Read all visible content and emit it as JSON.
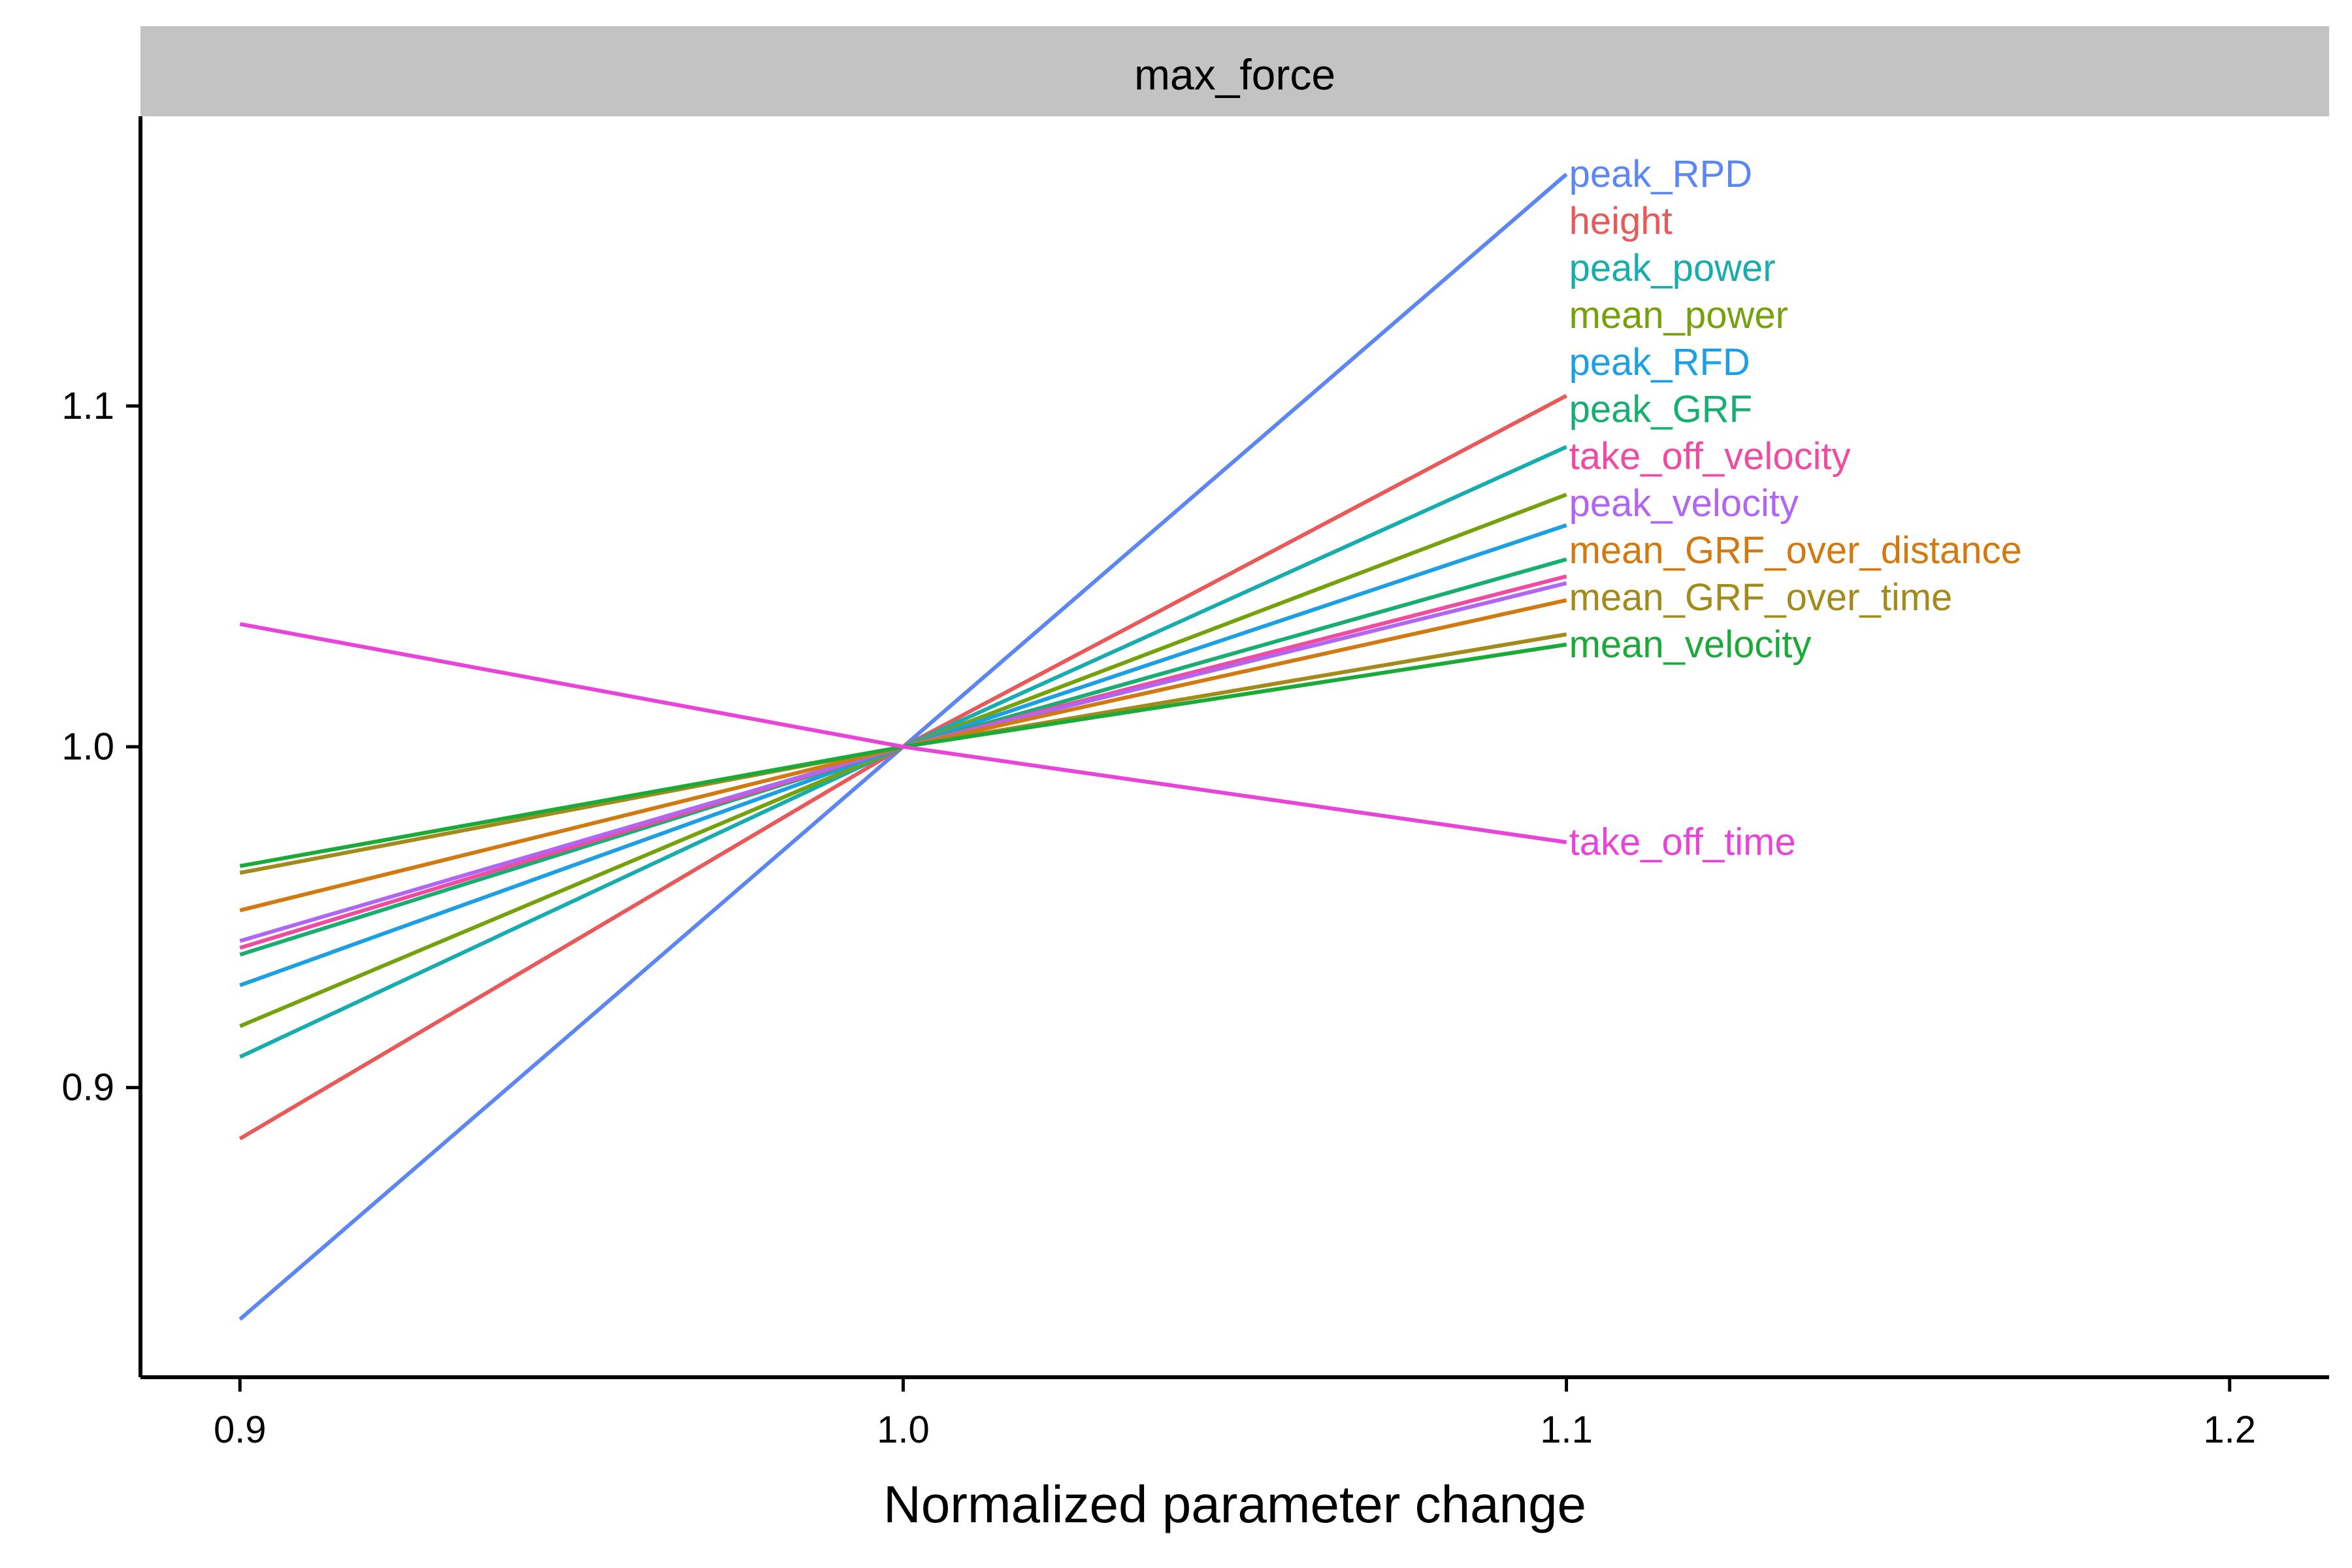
{
  "chart_data": {
    "type": "line",
    "title": "",
    "facet_label": "max_force",
    "xlabel": "Normalized parameter change",
    "ylabel": "",
    "xlim": [
      0.885,
      1.215
    ],
    "ylim": [
      0.815,
      1.185
    ],
    "x_ticks": [
      "0.9",
      "1.0",
      "1.1",
      "1.2"
    ],
    "y_ticks": [
      "0.9",
      "1.0",
      "1.1"
    ],
    "grid": false,
    "legend": "direct labels at line ends",
    "x": [
      0.9,
      1.0,
      1.1
    ],
    "series": [
      {
        "name": "peak_RPD",
        "color": "#5B86F4",
        "values": [
          0.832,
          1.0,
          1.168
        ]
      },
      {
        "name": "height",
        "color": "#E8595A",
        "values": [
          0.885,
          1.0,
          1.103
        ]
      },
      {
        "name": "peak_power",
        "color": "#17ADAF",
        "values": [
          0.909,
          1.0,
          1.088
        ]
      },
      {
        "name": "mean_power",
        "color": "#74A10C",
        "values": [
          0.918,
          1.0,
          1.074
        ]
      },
      {
        "name": "peak_RFD",
        "color": "#1C9FE3",
        "values": [
          0.93,
          1.0,
          1.065
        ]
      },
      {
        "name": "peak_GRF",
        "color": "#18AE72",
        "values": [
          0.939,
          1.0,
          1.055
        ]
      },
      {
        "name": "take_off_velocity",
        "color": "#EF4BA0",
        "values": [
          0.941,
          1.0,
          1.05
        ]
      },
      {
        "name": "peak_velocity",
        "color": "#B165F3",
        "values": [
          0.943,
          1.0,
          1.048
        ]
      },
      {
        "name": "mean_GRF_over_distance",
        "color": "#D27A12",
        "values": [
          0.952,
          1.0,
          1.043
        ]
      },
      {
        "name": "mean_GRF_over_time",
        "color": "#A28B1B",
        "values": [
          0.963,
          1.0,
          1.033
        ]
      },
      {
        "name": "mean_velocity",
        "color": "#19AA38",
        "values": [
          0.965,
          1.0,
          1.03
        ]
      },
      {
        "name": "take_off_time",
        "color": "#E944D8",
        "values": [
          1.036,
          1.0,
          0.972
        ]
      }
    ],
    "label_order": [
      "peak_RPD",
      "height",
      "peak_power",
      "mean_power",
      "peak_RFD",
      "peak_GRF",
      "take_off_velocity",
      "peak_velocity",
      "mean_GRF_over_distance",
      "mean_GRF_over_time",
      "mean_velocity"
    ],
    "colors": {
      "strip_background": "#C3C3C3",
      "axis": "#000000"
    }
  }
}
